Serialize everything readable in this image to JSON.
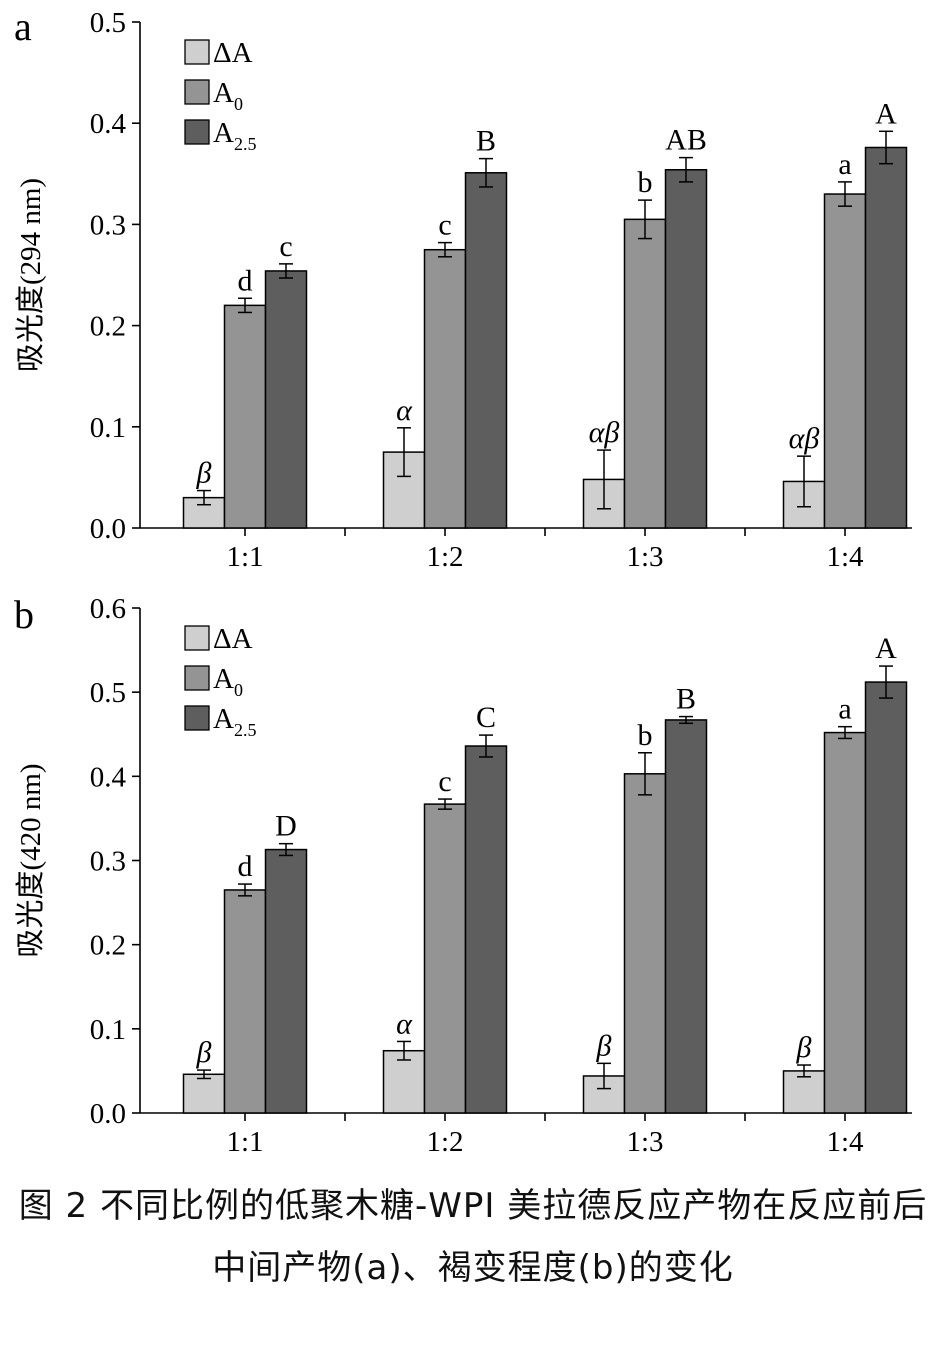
{
  "caption": {
    "line1": "图 2 不同比例的低聚木糖-WPI 美拉德反应产物在反应前后",
    "line2": "中间产物(a)、褐变程度(b)的变化"
  },
  "legend": [
    {
      "key": "dA",
      "label": "ΔA",
      "base": "ΔA",
      "sub": "",
      "color": "#cfcfcf"
    },
    {
      "key": "A0",
      "label": "A0",
      "base": "A",
      "sub": "0",
      "color": "#949494"
    },
    {
      "key": "A25",
      "label": "A2.5",
      "base": "A",
      "sub": "2.5",
      "color": "#5e5e5e"
    }
  ],
  "chart_data": [
    {
      "panel_label": "a",
      "type": "bar",
      "ylabel": "吸光度(294 nm)",
      "xlabel": "",
      "ylim": [
        0,
        0.5
      ],
      "yticks": [
        "0.0",
        "0.1",
        "0.2",
        "0.3",
        "0.4",
        "0.5"
      ],
      "categories": [
        "1:1",
        "1:2",
        "1:3",
        "1:4"
      ],
      "series": [
        {
          "name": "ΔA",
          "values": [
            0.03,
            0.075,
            0.048,
            0.046
          ],
          "errors": [
            0.007,
            0.024,
            0.029,
            0.025
          ],
          "letters": [
            "β",
            "α",
            "αβ",
            "αβ"
          ],
          "italic": true
        },
        {
          "name": "A0",
          "values": [
            0.22,
            0.275,
            0.305,
            0.33
          ],
          "errors": [
            0.007,
            0.007,
            0.019,
            0.012
          ],
          "letters": [
            "d",
            "c",
            "b",
            "a"
          ],
          "italic": false
        },
        {
          "name": "A2.5",
          "values": [
            0.254,
            0.351,
            0.354,
            0.376
          ],
          "errors": [
            0.007,
            0.014,
            0.012,
            0.016
          ],
          "letters": [
            "c",
            "B",
            "AB",
            "A"
          ],
          "italic": false
        }
      ],
      "legend_position": "top-left",
      "grid": false
    },
    {
      "panel_label": "b",
      "type": "bar",
      "ylabel": "吸光度(420 nm)",
      "xlabel": "",
      "ylim": [
        0,
        0.6
      ],
      "yticks": [
        "0.0",
        "0.1",
        "0.2",
        "0.3",
        "0.4",
        "0.5",
        "0.6"
      ],
      "categories": [
        "1:1",
        "1:2",
        "1:3",
        "1:4"
      ],
      "series": [
        {
          "name": "ΔA",
          "values": [
            0.046,
            0.074,
            0.044,
            0.05
          ],
          "errors": [
            0.005,
            0.011,
            0.015,
            0.007
          ],
          "letters": [
            "β",
            "α",
            "β",
            "β"
          ],
          "italic": true
        },
        {
          "name": "A0",
          "values": [
            0.265,
            0.367,
            0.403,
            0.452
          ],
          "errors": [
            0.007,
            0.006,
            0.025,
            0.007
          ],
          "letters": [
            "d",
            "c",
            "b",
            "a"
          ],
          "italic": false
        },
        {
          "name": "A2.5",
          "values": [
            0.313,
            0.436,
            0.467,
            0.512
          ],
          "errors": [
            0.007,
            0.013,
            0.004,
            0.019
          ],
          "letters": [
            "D",
            "C",
            "B",
            "A"
          ],
          "italic": false
        }
      ],
      "legend_position": "top-left",
      "grid": false
    }
  ]
}
